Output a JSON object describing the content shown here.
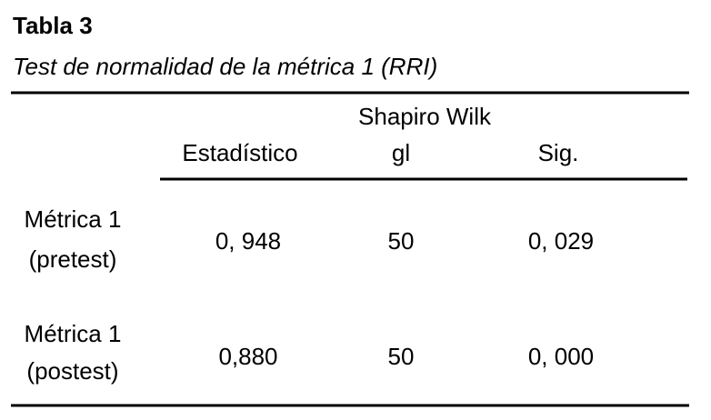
{
  "header": {
    "title": "Tabla 3",
    "subtitle": "Test de normalidad de la métrica 1 (RRI)"
  },
  "table": {
    "group_header": "Shapiro Wilk",
    "columns": [
      "Estadístico",
      "gl",
      "Sig."
    ],
    "rows": [
      {
        "label": [
          "Métrica 1",
          "(pretest)"
        ],
        "cells": [
          "0, 948",
          "50",
          "0, 029"
        ]
      },
      {
        "label": [
          "Métrica 1",
          "(postest)"
        ],
        "cells": [
          "0,880",
          "50",
          "0, 000"
        ]
      }
    ]
  }
}
